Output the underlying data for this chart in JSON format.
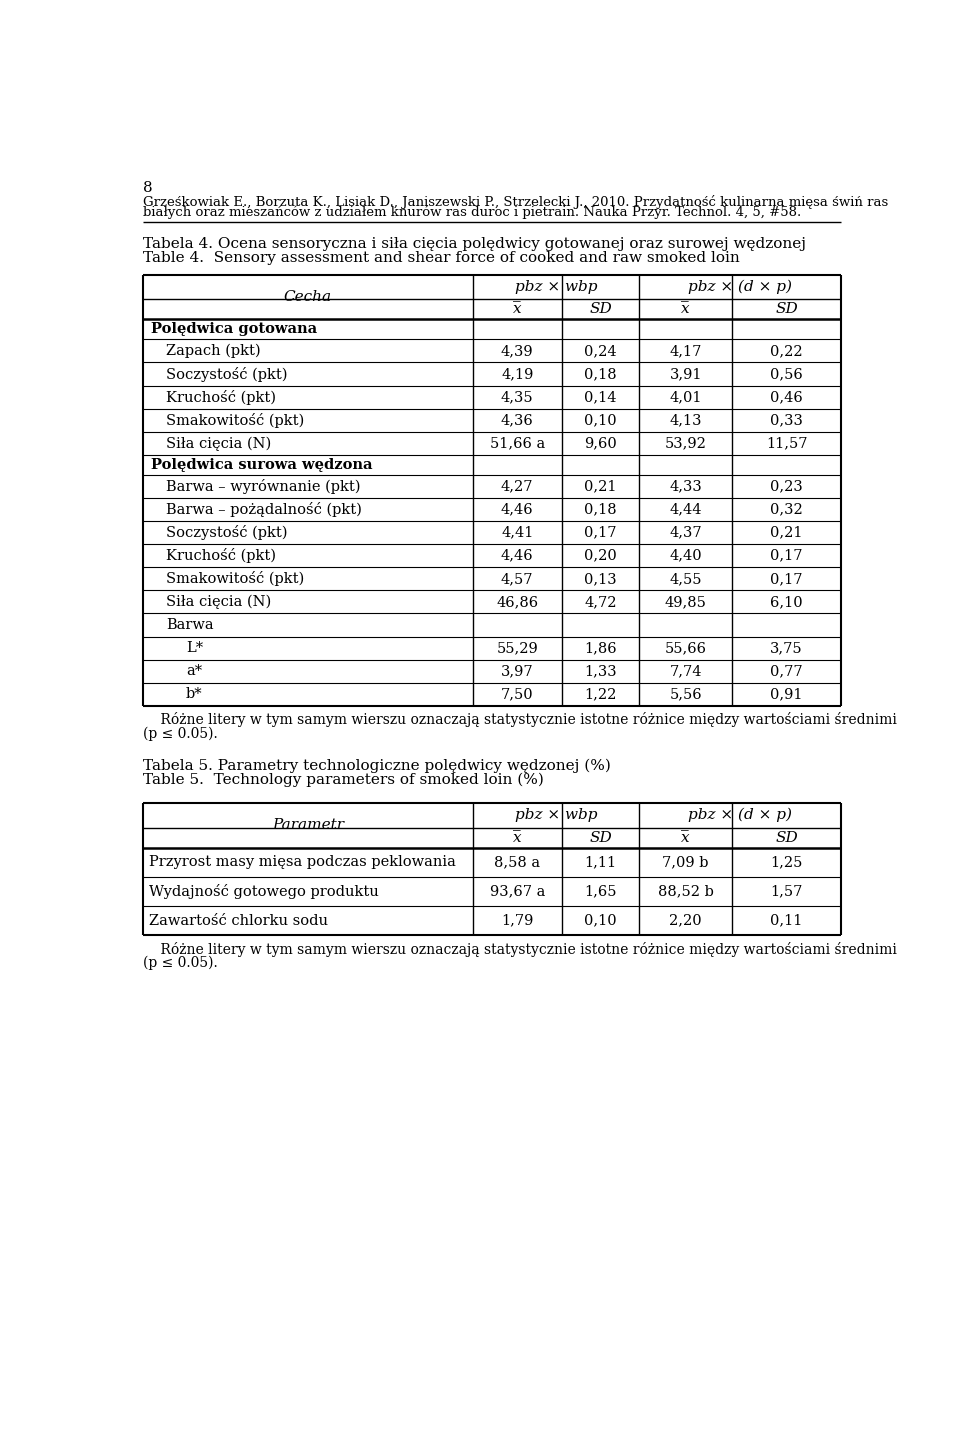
{
  "page_number": "8",
  "header_line1": "Grześkowiak E., Borzuta K., Lisiak D., Janiszewski P., Strzelecki J., 2010. Przydatność kulinarna mięsa świń ras",
  "header_line2": "białych oraz mieszańców z udziałem knurów ras duroc i pietrain. Nauka Przyr. Technol. 4, 5, #58.",
  "table1_title_pl": "Tabela 4. Ocena sensoryczna i siła cięcia polędwicy gotowanej oraz surowej wędzonej",
  "table1_title_en": "Table 4.  Sensory assessment and shear force of cooked and raw smoked loin",
  "col_header1_t1": "Cecha",
  "col_header2": "pbz × wbp",
  "col_header3": "pbz × (d × p)",
  "col_subheaders": [
    "x̅",
    "SD",
    "x̅",
    "SD"
  ],
  "table1_rows": [
    {
      "label": "Polędwica gotowana",
      "bold": true,
      "indent": 0,
      "values": [
        "",
        "",
        "",
        ""
      ]
    },
    {
      "label": "Zapach (pkt)",
      "bold": false,
      "indent": 1,
      "values": [
        "4,39",
        "0,24",
        "4,17",
        "0,22"
      ]
    },
    {
      "label": "Soczystość (pkt)",
      "bold": false,
      "indent": 1,
      "values": [
        "4,19",
        "0,18",
        "3,91",
        "0,56"
      ]
    },
    {
      "label": "Kruchość (pkt)",
      "bold": false,
      "indent": 1,
      "values": [
        "4,35",
        "0,14",
        "4,01",
        "0,46"
      ]
    },
    {
      "label": "Smakowitość (pkt)",
      "bold": false,
      "indent": 1,
      "values": [
        "4,36",
        "0,10",
        "4,13",
        "0,33"
      ]
    },
    {
      "label": "Siła cięcia (N)",
      "bold": false,
      "indent": 1,
      "values": [
        "51,66 a",
        "9,60",
        "53,92",
        "11,57"
      ]
    },
    {
      "label": "Polędwica surowa wędzona",
      "bold": true,
      "indent": 0,
      "values": [
        "",
        "",
        "",
        ""
      ]
    },
    {
      "label": "Barwa – wyrównanie (pkt)",
      "bold": false,
      "indent": 1,
      "values": [
        "4,27",
        "0,21",
        "4,33",
        "0,23"
      ]
    },
    {
      "label": "Barwa – pożądalność (pkt)",
      "bold": false,
      "indent": 1,
      "values": [
        "4,46",
        "0,18",
        "4,44",
        "0,32"
      ]
    },
    {
      "label": "Soczystość (pkt)",
      "bold": false,
      "indent": 1,
      "values": [
        "4,41",
        "0,17",
        "4,37",
        "0,21"
      ]
    },
    {
      "label": "Kruchość (pkt)",
      "bold": false,
      "indent": 1,
      "values": [
        "4,46",
        "0,20",
        "4,40",
        "0,17"
      ]
    },
    {
      "label": "Smakowitość (pkt)",
      "bold": false,
      "indent": 1,
      "values": [
        "4,57",
        "0,13",
        "4,55",
        "0,17"
      ]
    },
    {
      "label": "Siła cięcia (N)",
      "bold": false,
      "indent": 1,
      "values": [
        "46,86",
        "4,72",
        "49,85",
        "6,10"
      ]
    },
    {
      "label": "Barwa",
      "bold": false,
      "indent": 1,
      "values": [
        "",
        "",
        "",
        ""
      ]
    },
    {
      "label": "L*",
      "bold": false,
      "indent": 2,
      "values": [
        "55,29",
        "1,86",
        "55,66",
        "3,75"
      ]
    },
    {
      "label": "a*",
      "bold": false,
      "indent": 2,
      "values": [
        "3,97",
        "1,33",
        "7,74",
        "0,77"
      ]
    },
    {
      "label": "b*",
      "bold": false,
      "indent": 2,
      "values": [
        "7,50",
        "1,22",
        "5,56",
        "0,91"
      ]
    }
  ],
  "table1_footnote1": "    Różne litery w tym samym wierszu oznaczają statystycznie istotne różnice między wartościami średnimi",
  "table1_footnote2": "(p ≤ 0.05).",
  "table2_title_pl": "Tabela 5. Parametry technologiczne polędwicy wędzonej (%)",
  "table2_title_en": "Table 5.  Technology parameters of smoked loin (%)",
  "col_header1_t2": "Parametr",
  "table2_rows": [
    {
      "label": "Przyrost masy mięsa podczas peklowania",
      "bold": false,
      "indent": 0,
      "values": [
        "8,58 a",
        "1,11",
        "7,09 b",
        "1,25"
      ]
    },
    {
      "label": "Wydajność gotowego produktu",
      "bold": false,
      "indent": 0,
      "values": [
        "93,67 a",
        "1,65",
        "88,52 b",
        "1,57"
      ]
    },
    {
      "label": "Zawartość chlorku sodu",
      "bold": false,
      "indent": 0,
      "values": [
        "1,79",
        "0,10",
        "2,20",
        "0,11"
      ]
    }
  ],
  "table2_footnote1": "    Różne litery w tym samym wierszu oznaczają statystycznie istotne różnice między wartościami średnimi",
  "table2_footnote2": "(p ≤ 0.05).",
  "bg_color": "#ffffff"
}
